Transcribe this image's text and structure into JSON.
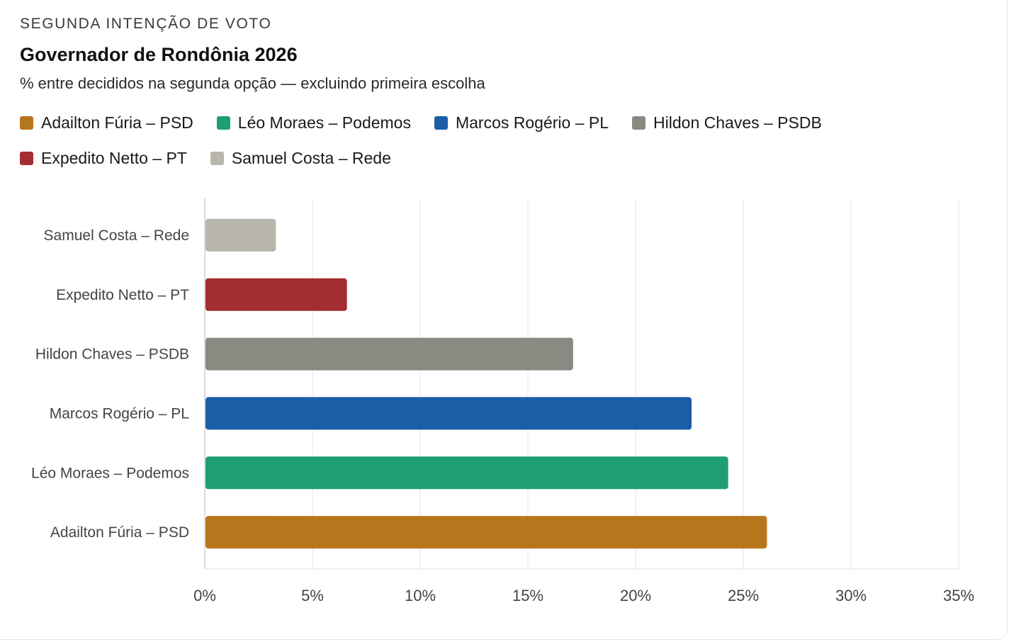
{
  "header": {
    "kicker": "SEGUNDA INTENÇÃO DE VOTO",
    "title": "Governador de Rondônia 2026",
    "subtitle": "% entre decididos na segunda opção — excluindo primeira escolha"
  },
  "legend": [
    {
      "label": "Adailton Fúria – PSD",
      "color": "#B8761C"
    },
    {
      "label": "Léo Moraes – Podemos",
      "color": "#1E9E74"
    },
    {
      "label": "Marcos Rogério – PL",
      "color": "#1B5EA6"
    },
    {
      "label": "Hildon Chaves – PSDB",
      "color": "#8A8A82"
    },
    {
      "label": "Expedito Netto – PT",
      "color": "#A32D2F"
    },
    {
      "label": "Samuel Costa – Rede",
      "color": "#B8B5AD"
    }
  ],
  "chart_data": {
    "type": "bar",
    "orientation": "horizontal",
    "title": "Governador de Rondônia 2026",
    "xlabel": "",
    "ylabel": "",
    "xlim": [
      0,
      35
    ],
    "ticks": [
      0,
      5,
      10,
      15,
      20,
      25,
      30,
      35
    ],
    "tick_labels": [
      "0%",
      "5%",
      "10%",
      "15%",
      "20%",
      "25%",
      "30%",
      "35%"
    ],
    "grid": true,
    "legend_position": "top",
    "categories": [
      "Samuel Costa – Rede",
      "Expedito Netto – PT",
      "Hildon Chaves – PSDB",
      "Marcos Rogério – PL",
      "Léo Moraes – Podemos",
      "Adailton Fúria – PSD"
    ],
    "values": [
      3.3,
      6.6,
      17.1,
      22.6,
      24.3,
      26.1
    ],
    "colors": [
      "#B8B5AD",
      "#A32D2F",
      "#8A8A82",
      "#1B5EA6",
      "#1E9E74",
      "#B8761C"
    ]
  }
}
